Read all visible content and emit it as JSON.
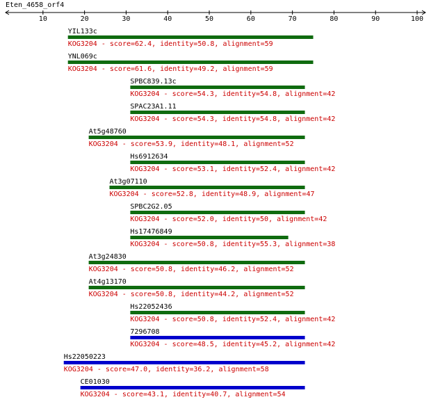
{
  "chart_data": {
    "type": "alignment",
    "title": "Eten_4658_orf4",
    "xlim": [
      1,
      102
    ],
    "xticks": [
      10,
      20,
      30,
      40,
      50,
      60,
      70,
      80,
      90,
      100
    ],
    "hits": [
      {
        "name": "YIL133c",
        "start": 16,
        "end": 75,
        "color": "#0f6b0f",
        "label": "KOG3204 - score=62.4, identity=50.8, alignment=59"
      },
      {
        "name": "YNL069c",
        "start": 16,
        "end": 75,
        "color": "#0f6b0f",
        "label": "KOG3204 - score=61.6, identity=49.2, alignment=59"
      },
      {
        "name": "SPBC839.13c",
        "start": 31,
        "end": 73,
        "color": "#0f6b0f",
        "label": "KOG3204 - score=54.3, identity=54.8, alignment=42"
      },
      {
        "name": "SPAC23A1.11",
        "start": 31,
        "end": 73,
        "color": "#0f6b0f",
        "label": "KOG3204 - score=54.3, identity=54.8, alignment=42"
      },
      {
        "name": "At5g48760",
        "start": 21,
        "end": 73,
        "color": "#0f6b0f",
        "label": "KOG3204 - score=53.9, identity=48.1, alignment=52"
      },
      {
        "name": "Hs6912634",
        "start": 31,
        "end": 73,
        "color": "#0f6b0f",
        "label": "KOG3204 - score=53.1, identity=52.4, alignment=42"
      },
      {
        "name": "At3g07110",
        "start": 26,
        "end": 73,
        "color": "#0f6b0f",
        "label": "KOG3204 - score=52.8, identity=48.9, alignment=47"
      },
      {
        "name": "SPBC2G2.05",
        "start": 31,
        "end": 73,
        "color": "#0f6b0f",
        "label": "KOG3204 - score=52.0, identity=50, alignment=42"
      },
      {
        "name": "Hs17476849",
        "start": 31,
        "end": 69,
        "color": "#0f6b0f",
        "label": "KOG3204 - score=50.8, identity=55.3, alignment=38"
      },
      {
        "name": "At3g24830",
        "start": 21,
        "end": 73,
        "color": "#0f6b0f",
        "label": "KOG3204 - score=50.8, identity=46.2, alignment=52"
      },
      {
        "name": "At4g13170",
        "start": 21,
        "end": 73,
        "color": "#0f6b0f",
        "label": "KOG3204 - score=50.8, identity=44.2, alignment=52"
      },
      {
        "name": "Hs22052436",
        "start": 31,
        "end": 73,
        "color": "#0f6b0f",
        "label": "KOG3204 - score=50.8, identity=52.4, alignment=42"
      },
      {
        "name": "7296708",
        "start": 31,
        "end": 73,
        "color": "#0000cc",
        "label": "KOG3204 - score=48.5, identity=45.2, alignment=42"
      },
      {
        "name": "Hs22050223",
        "start": 15,
        "end": 73,
        "color": "#0000cc",
        "label": "KOG3204 - score=47.0, identity=36.2, alignment=58"
      },
      {
        "name": "CE01030",
        "start": 19,
        "end": 73,
        "color": "#0000cc",
        "label": "KOG3204 - score=43.1, identity=40.7, alignment=54"
      }
    ]
  }
}
